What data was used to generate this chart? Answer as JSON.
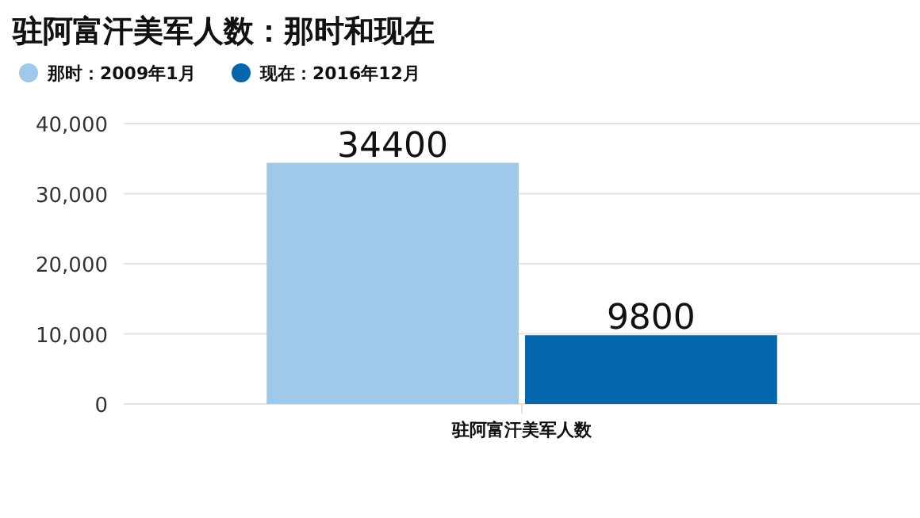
{
  "chart_data": {
    "type": "bar",
    "title": "驻阿富汗美军人数：那时和现在",
    "categories": [
      "驻阿富汗美军人数"
    ],
    "series": [
      {
        "name": "那时：2009年1月",
        "color": "#9fc9ea",
        "values": [
          34400
        ]
      },
      {
        "name": "现在：2016年12月",
        "color": "#0466ac",
        "values": [
          9800
        ]
      }
    ],
    "ylim": [
      0,
      40000
    ],
    "yticks": [
      {
        "value": 0,
        "label": "0"
      },
      {
        "value": 10000,
        "label": "10,000"
      },
      {
        "value": 20000,
        "label": "20,000"
      },
      {
        "value": 30000,
        "label": "30,000"
      },
      {
        "value": 40000,
        "label": "40,000"
      }
    ],
    "grid": "y",
    "legend": "top left",
    "data_labels": true
  }
}
